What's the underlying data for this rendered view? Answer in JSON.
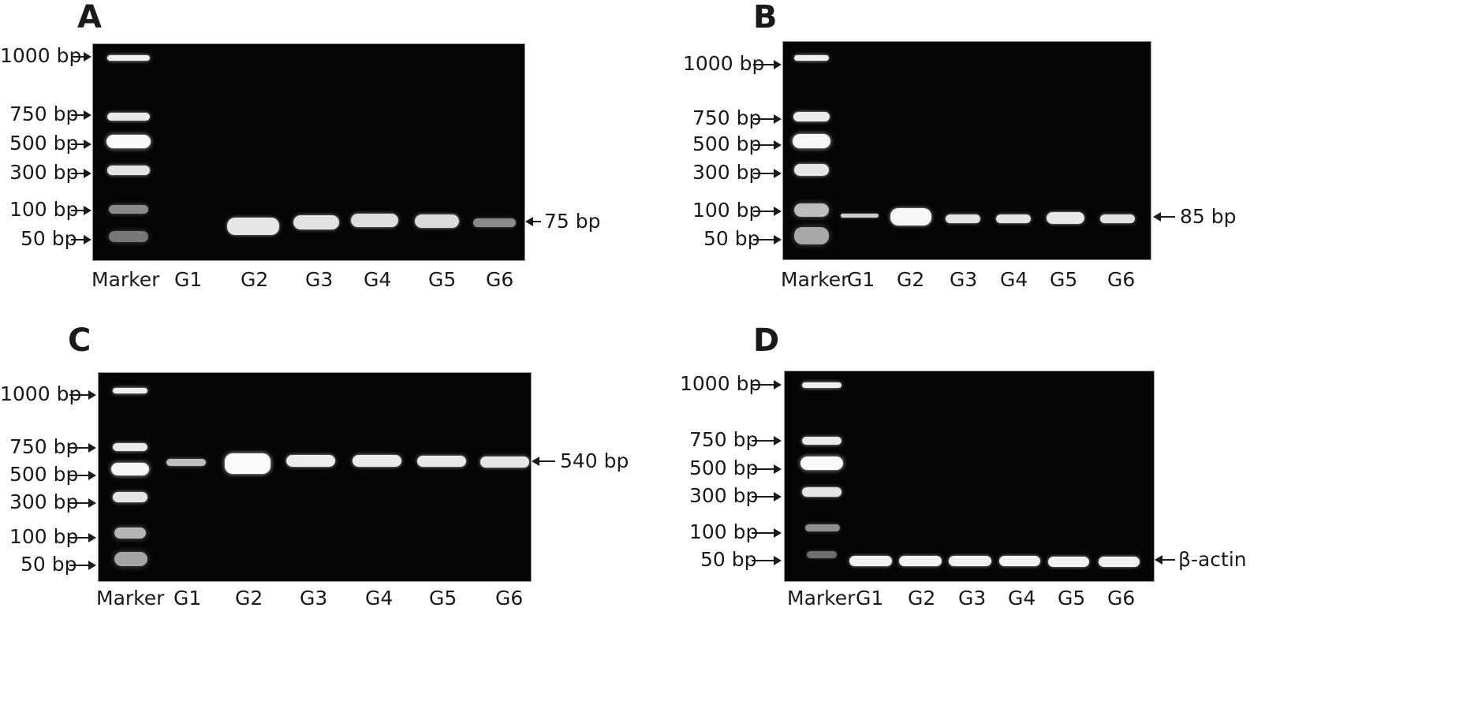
{
  "panels": [
    {
      "letter": "A",
      "ladder": [
        "1000 bp",
        "750 bp",
        "500 bp",
        "300 bp",
        "100 bp",
        "50 bp"
      ],
      "lanes": [
        "Marker",
        "G1",
        "G2",
        "G3",
        "G4",
        "G5",
        "G6"
      ],
      "product_label": "75 bp"
    },
    {
      "letter": "B",
      "ladder": [
        "1000 bp",
        "750 bp",
        "500 bp",
        "300 bp",
        "100 bp",
        "50 bp"
      ],
      "lanes": [
        "Marker",
        "G1",
        "G2",
        "G3",
        "G4",
        "G5",
        "G6"
      ],
      "product_label": "85 bp"
    },
    {
      "letter": "C",
      "ladder": [
        "1000 bp",
        "750 bp",
        "500 bp",
        "300 bp",
        "100 bp",
        "50 bp"
      ],
      "lanes": [
        "Marker",
        "G1",
        "G2",
        "G3",
        "G4",
        "G5",
        "G6"
      ],
      "product_label": "540 bp"
    },
    {
      "letter": "D",
      "ladder": [
        "1000 bp",
        "750 bp",
        "500 bp",
        "300 bp",
        "100 bp",
        "50 bp"
      ],
      "lanes": [
        "Marker",
        "G1",
        "G2",
        "G3",
        "G4",
        "G5",
        "G6"
      ],
      "product_label": "β-actin"
    }
  ],
  "colors": {
    "gel": "#050505",
    "band": "#f2f2f2",
    "text": "#1a1a1a"
  }
}
